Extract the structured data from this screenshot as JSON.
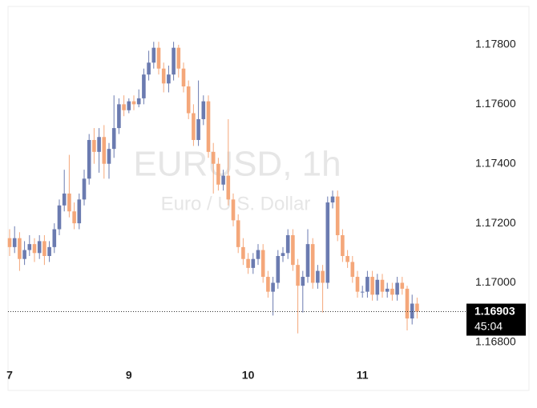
{
  "chart_data": {
    "type": "candlestick",
    "watermark_title": "EURUSD, 1h",
    "watermark_subtitle": "Euro / U.S. Dollar",
    "categories": [
      "7",
      null,
      null,
      null,
      null,
      null,
      null,
      null,
      null,
      null,
      null,
      null,
      null,
      null,
      null,
      null,
      null,
      null,
      null,
      null,
      null,
      null,
      null,
      null,
      "9",
      null,
      null,
      null,
      null,
      null,
      null,
      null,
      null,
      null,
      null,
      null,
      null,
      null,
      null,
      null,
      null,
      null,
      null,
      null,
      null,
      null,
      null,
      null,
      "10",
      null,
      null,
      null,
      null,
      null,
      null,
      null,
      null,
      null,
      null,
      null,
      null,
      null,
      null,
      null,
      null,
      null,
      null,
      null,
      null,
      null,
      null,
      "11",
      null,
      null,
      null,
      null,
      null,
      null,
      null,
      null,
      null,
      null,
      null
    ],
    "open": [
      1.1715,
      1.1712,
      1.1715,
      1.1708,
      1.1711,
      1.1713,
      1.171,
      1.1714,
      1.1709,
      1.1712,
      1.1718,
      1.1726,
      1.173,
      1.1724,
      1.172,
      1.1728,
      1.1735,
      1.1748,
      1.1744,
      1.1749,
      1.174,
      1.1745,
      1.1752,
      1.176,
      1.1758,
      1.1761,
      1.176,
      1.1762,
      1.177,
      1.1774,
      1.1779,
      1.1772,
      1.1767,
      1.177,
      1.1779,
      1.1772,
      1.1766,
      1.1757,
      1.1748,
      1.1755,
      1.1761,
      1.1744,
      1.174,
      1.1733,
      1.1736,
      1.1728,
      1.1721,
      1.1712,
      1.1708,
      1.1705,
      1.1708,
      1.1711,
      1.1702,
      1.1697,
      1.17,
      1.1709,
      1.171,
      1.1716,
      1.1706,
      1.1699,
      1.1702,
      1.1713,
      1.17,
      1.1704,
      1.17,
      1.1727,
      1.1729,
      1.1716,
      1.1709,
      1.1707,
      1.1702,
      1.1697,
      1.1697,
      1.1702,
      1.1696,
      1.1701,
      1.1697,
      1.1698,
      1.1696,
      1.17,
      1.1698,
      1.1688,
      1.1693
    ],
    "high": [
      1.1718,
      1.1719,
      1.1717,
      1.1714,
      1.1716,
      1.1715,
      1.1716,
      1.1716,
      1.1714,
      1.172,
      1.1728,
      1.1738,
      1.1743,
      1.1727,
      1.173,
      1.1738,
      1.175,
      1.1752,
      1.1752,
      1.1753,
      1.1747,
      1.1763,
      1.1762,
      1.1763,
      1.1762,
      1.1763,
      1.1765,
      1.1772,
      1.1778,
      1.1781,
      1.1781,
      1.1774,
      1.1773,
      1.1781,
      1.178,
      1.1774,
      1.1768,
      1.176,
      1.1768,
      1.1763,
      1.1763,
      1.1747,
      1.1742,
      1.1738,
      1.1755,
      1.173,
      1.1723,
      1.1715,
      1.171,
      1.171,
      1.1713,
      1.1713,
      1.1704,
      1.1702,
      1.1711,
      1.1712,
      1.1718,
      1.1718,
      1.1708,
      1.1704,
      1.1718,
      1.1715,
      1.1706,
      1.1706,
      1.1729,
      1.1731,
      1.1731,
      1.1718,
      1.1711,
      1.1709,
      1.1704,
      1.1699,
      1.1704,
      1.1704,
      1.1703,
      1.1703,
      1.17,
      1.17,
      1.1702,
      1.1702,
      1.1699,
      1.1696,
      1.1695
    ],
    "low": [
      1.1709,
      1.171,
      1.1704,
      1.1706,
      1.1709,
      1.1707,
      1.1708,
      1.1706,
      1.1707,
      1.171,
      1.1716,
      1.1724,
      1.1722,
      1.1718,
      1.1718,
      1.1726,
      1.1733,
      1.174,
      1.1737,
      1.1735,
      1.1735,
      1.1742,
      1.175,
      1.1756,
      1.1757,
      1.1758,
      1.1759,
      1.176,
      1.1768,
      1.1772,
      1.177,
      1.1764,
      1.1764,
      1.1768,
      1.1769,
      1.1764,
      1.1755,
      1.1746,
      1.1746,
      1.1753,
      1.1742,
      1.173,
      1.1731,
      1.1731,
      1.1726,
      1.1719,
      1.171,
      1.1706,
      1.1703,
      1.1703,
      1.1706,
      1.17,
      1.1695,
      1.1689,
      1.1698,
      1.1707,
      1.1708,
      1.1704,
      1.1683,
      1.169,
      1.17,
      1.1698,
      1.1698,
      1.169,
      1.1698,
      1.1725,
      1.1714,
      1.1707,
      1.1705,
      1.17,
      1.1695,
      1.1695,
      1.1695,
      1.1694,
      1.1694,
      1.1695,
      1.1695,
      1.1694,
      1.1694,
      1.1696,
      1.1684,
      1.1686,
      1.1688
    ],
    "close": [
      1.1712,
      1.1715,
      1.1708,
      1.1711,
      1.1713,
      1.171,
      1.1714,
      1.1709,
      1.1712,
      1.1718,
      1.1726,
      1.173,
      1.1724,
      1.172,
      1.1728,
      1.1735,
      1.1748,
      1.1744,
      1.1749,
      1.174,
      1.1745,
      1.1752,
      1.176,
      1.1758,
      1.1761,
      1.176,
      1.1762,
      1.177,
      1.1774,
      1.1779,
      1.1772,
      1.1767,
      1.177,
      1.1779,
      1.1772,
      1.1766,
      1.1757,
      1.1748,
      1.1755,
      1.1761,
      1.1744,
      1.174,
      1.1733,
      1.1736,
      1.1728,
      1.1721,
      1.1712,
      1.1708,
      1.1705,
      1.1708,
      1.1711,
      1.1702,
      1.1697,
      1.17,
      1.1709,
      1.171,
      1.1716,
      1.1706,
      1.1699,
      1.1702,
      1.1713,
      1.17,
      1.1704,
      1.17,
      1.1727,
      1.1729,
      1.1716,
      1.1709,
      1.1707,
      1.1702,
      1.1697,
      1.1697,
      1.1702,
      1.1696,
      1.1701,
      1.1697,
      1.1698,
      1.1696,
      1.17,
      1.1698,
      1.1688,
      1.1693,
      1.16903
    ],
    "up_color": "#6b7bb0",
    "down_color": "#f4a77a",
    "ylim": [
      1.16727,
      1.17929
    ],
    "yticks": [
      {
        "value": 1.168,
        "label": "1.16800"
      },
      {
        "value": 1.17,
        "label": "1.17000"
      },
      {
        "value": 1.172,
        "label": "1.17200"
      },
      {
        "value": 1.174,
        "label": "1.17400"
      },
      {
        "value": 1.176,
        "label": "1.17600"
      },
      {
        "value": 1.178,
        "label": "1.17800"
      }
    ],
    "last_price": {
      "value": 1.16903,
      "label": "1.16903"
    },
    "countdown": "45:04"
  }
}
